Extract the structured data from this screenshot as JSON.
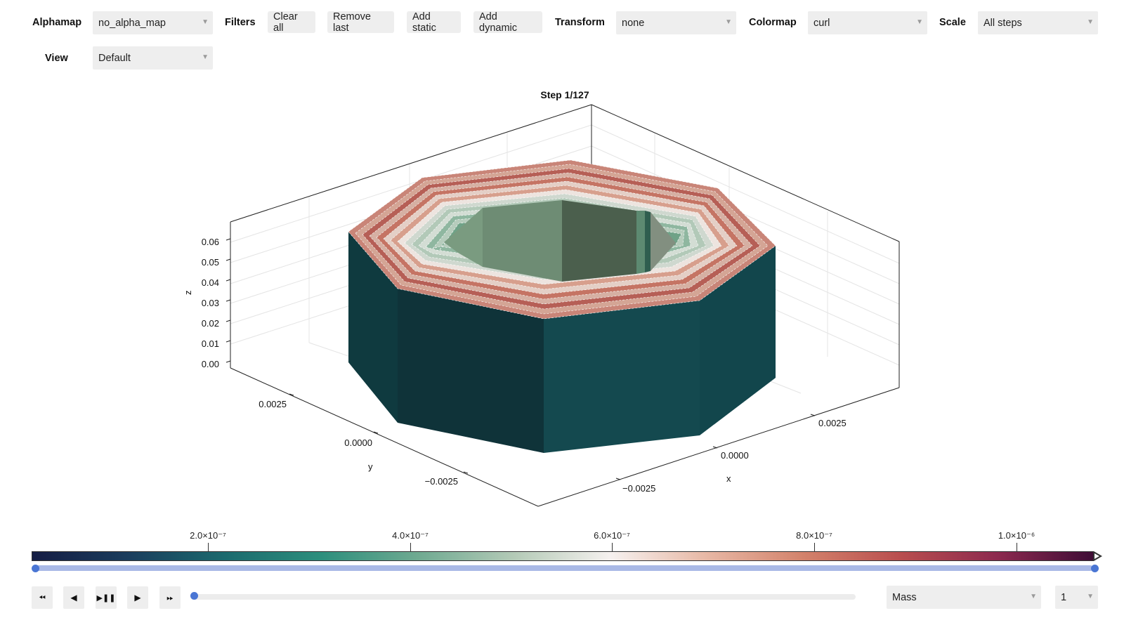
{
  "toolbar": {
    "alphamap_label": "Alphamap",
    "alphamap_value": "no_alpha_map",
    "filters_label": "Filters",
    "clear_all": "Clear all",
    "remove_last": "Remove last",
    "add_static": "Add static",
    "add_dynamic": "Add dynamic",
    "transform_label": "Transform",
    "transform_value": "none",
    "colormap_label": "Colormap",
    "colormap_value": "curl",
    "scale_label": "Scale",
    "scale_value": "All steps",
    "view_label": "View",
    "view_value": "Default"
  },
  "icons": {
    "dropdown": "caret-down-icon",
    "first": "skip-back-icon",
    "prev": "step-back-icon",
    "play_pause": "play-pause-icon",
    "play": "play-icon",
    "last": "skip-forward-icon"
  },
  "plot": {
    "title": "Step 1/127",
    "z_label": "z",
    "y_label": "y",
    "x_label": "x",
    "z_ticks": [
      "0.06",
      "0.05",
      "0.04",
      "0.03",
      "0.02",
      "0.01",
      "0.00"
    ],
    "y_ticks": [
      "0.0025",
      "0.0000",
      "−0.0025"
    ],
    "x_ticks": [
      "0.0025",
      "0.0000",
      "−0.0025"
    ]
  },
  "colorbar": {
    "ticks": [
      "2.0×10⁻⁷",
      "4.0×10⁻⁷",
      "6.0×10⁻⁷",
      "8.0×10⁻⁷",
      "1.0×10⁻⁶"
    ],
    "colors": [
      "#151d44",
      "#1b6a6e",
      "#6faa91",
      "#f6f1ef",
      "#d3826b",
      "#b94e4f",
      "#3f0d36"
    ]
  },
  "playback": {
    "step_range": [
      0,
      1
    ],
    "step_position": 0,
    "quantity_value": "Mass",
    "speed_value": "1"
  }
}
